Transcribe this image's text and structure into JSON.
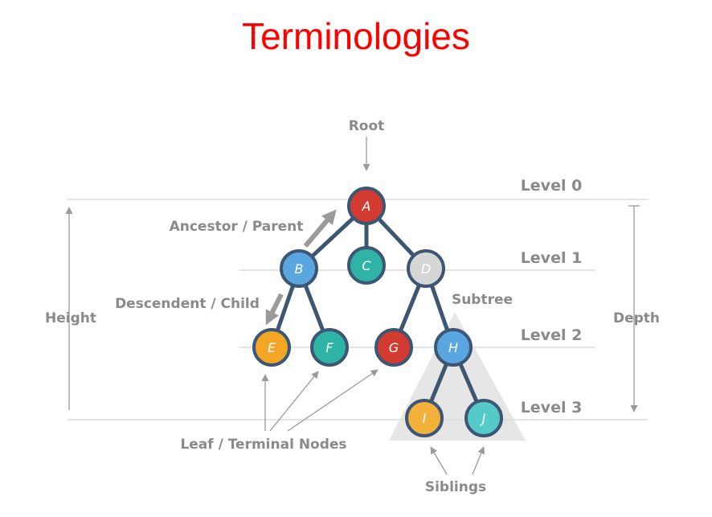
{
  "title": "Terminologies",
  "labels": {
    "root": "Root",
    "ancestor": "Ancestor / Parent",
    "descendent": "Descendent / Child",
    "height": "Height",
    "depth": "Depth",
    "subtree": "Subtree",
    "leaf": "Leaf / Terminal Nodes",
    "siblings": "Siblings"
  },
  "levels": [
    "Level 0",
    "Level 1",
    "Level 2",
    "Level 3"
  ],
  "nodes": [
    {
      "id": "A",
      "color": "#d23b30"
    },
    {
      "id": "B",
      "color": "#5aa6e0"
    },
    {
      "id": "C",
      "color": "#2fb3a6"
    },
    {
      "id": "D",
      "color": "#d6d6d6"
    },
    {
      "id": "E",
      "color": "#f3a623"
    },
    {
      "id": "F",
      "color": "#2fb3a6"
    },
    {
      "id": "G",
      "color": "#d23b30"
    },
    {
      "id": "H",
      "color": "#5aa6e0"
    },
    {
      "id": "I",
      "color": "#f3b13b"
    },
    {
      "id": "J",
      "color": "#56c9c9"
    }
  ],
  "colors": {
    "title": "#ff0000",
    "edge": "#3d5673",
    "node_border": "#3d5673",
    "label": "#8a8a8a",
    "guide": "#dcdcdc",
    "subtree": "#e3e3e3"
  }
}
